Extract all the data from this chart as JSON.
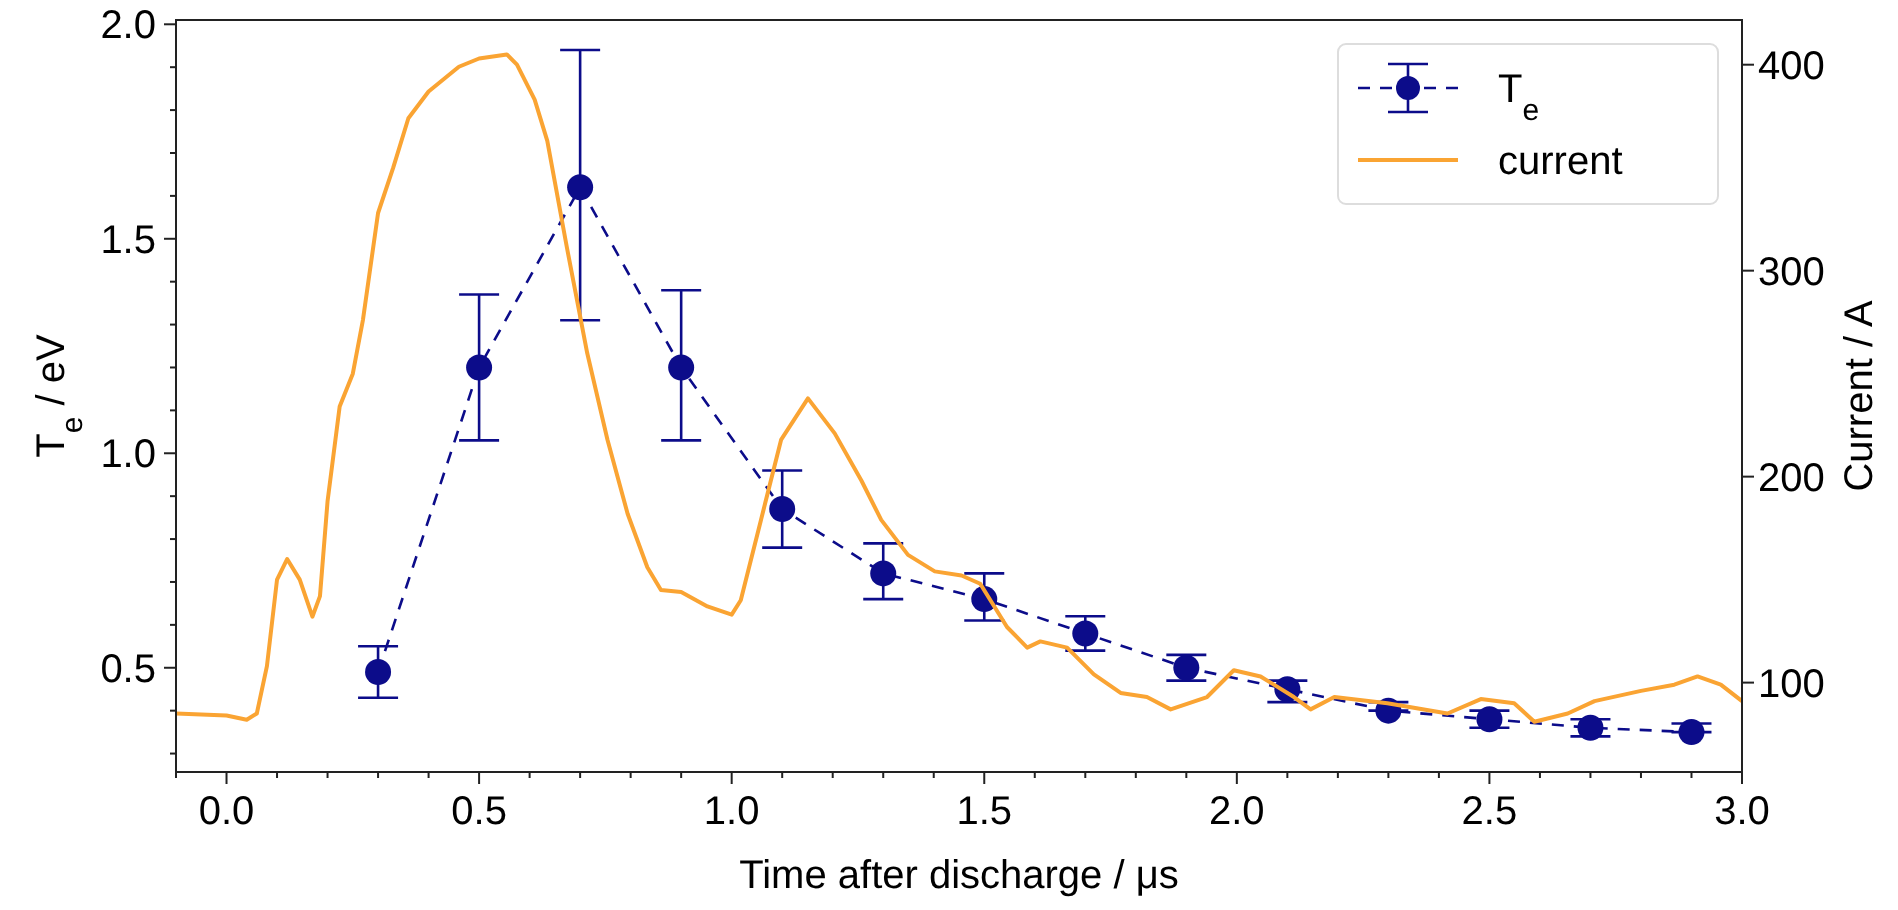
{
  "chart_data": {
    "type": "line",
    "xlabel": "Time after discharge / μs",
    "ylabel": "T$_{e}$ / eV",
    "y2label": "Current / A",
    "legend": "top right",
    "xlim": [
      -0.1,
      3.0
    ],
    "xticks": [
      {
        "value": -0.1,
        "label": null
      },
      {
        "value": 0,
        "label": "0.0"
      },
      {
        "value": 0.1,
        "label": null
      },
      {
        "value": 0.2,
        "label": null
      },
      {
        "value": 0.3,
        "label": null
      },
      {
        "value": 0.4,
        "label": null
      },
      {
        "value": 0.5,
        "label": "0.5"
      },
      {
        "value": 0.6,
        "label": null
      },
      {
        "value": 0.7,
        "label": null
      },
      {
        "value": 0.8,
        "label": null
      },
      {
        "value": 0.9,
        "label": null
      },
      {
        "value": 1,
        "label": "1.0"
      },
      {
        "value": 1.1,
        "label": null
      },
      {
        "value": 1.2,
        "label": null
      },
      {
        "value": 1.3,
        "label": null
      },
      {
        "value": 1.4,
        "label": null
      },
      {
        "value": 1.5,
        "label": "1.5"
      },
      {
        "value": 1.6,
        "label": null
      },
      {
        "value": 1.7,
        "label": null
      },
      {
        "value": 1.8,
        "label": null
      },
      {
        "value": 1.9,
        "label": null
      },
      {
        "value": 2,
        "label": "2.0"
      },
      {
        "value": 2.1,
        "label": null
      },
      {
        "value": 2.2,
        "label": null
      },
      {
        "value": 2.3,
        "label": null
      },
      {
        "value": 2.4,
        "label": null
      },
      {
        "value": 2.5,
        "label": "2.5"
      },
      {
        "value": 2.6,
        "label": null
      },
      {
        "value": 2.7,
        "label": null
      },
      {
        "value": 2.8,
        "label": null
      },
      {
        "value": 2.9,
        "label": null
      },
      {
        "value": 3,
        "label": "3.0"
      }
    ],
    "ylim": [
      0.257,
      2.01
    ],
    "yticks": [
      {
        "value": 0.3,
        "label": null
      },
      {
        "value": 0.4,
        "label": null
      },
      {
        "value": 0.5,
        "label": "0.5"
      },
      {
        "value": 0.6,
        "label": null
      },
      {
        "value": 0.7,
        "label": null
      },
      {
        "value": 0.8,
        "label": null
      },
      {
        "value": 0.9,
        "label": null
      },
      {
        "value": 1,
        "label": "1.0"
      },
      {
        "value": 1.1,
        "label": null
      },
      {
        "value": 1.2,
        "label": null
      },
      {
        "value": 1.3,
        "label": null
      },
      {
        "value": 1.4,
        "label": null
      },
      {
        "value": 1.5,
        "label": "1.5"
      },
      {
        "value": 1.6,
        "label": null
      },
      {
        "value": 1.7,
        "label": null
      },
      {
        "value": 1.8,
        "label": null
      },
      {
        "value": 1.9,
        "label": null
      },
      {
        "value": 2,
        "label": "2.0"
      }
    ],
    "y2lim": [
      56.6,
      421.7
    ],
    "y2ticks": [
      100,
      200,
      300,
      400
    ],
    "series": [
      {
        "name": "T$_{e}$",
        "color": "#0c0c8a",
        "line_style": "dashed",
        "marker": "circle",
        "x": [
          0.3,
          0.5,
          0.7,
          0.9,
          1.1,
          1.3,
          1.5,
          1.7,
          1.9,
          2.1,
          2.3,
          2.5,
          2.7,
          2.9
        ],
        "values": [
          0.49,
          1.2,
          1.62,
          1.2,
          0.87,
          0.72,
          0.66,
          0.58,
          0.5,
          0.45,
          0.4,
          0.38,
          0.36,
          0.35
        ],
        "errors": [
          [
            0.43,
            0.55
          ],
          [
            1.03,
            1.37
          ],
          [
            1.31,
            1.94
          ],
          [
            1.03,
            1.38
          ],
          [
            0.78,
            0.96
          ],
          [
            0.66,
            0.79
          ],
          [
            0.61,
            0.72
          ],
          [
            0.54,
            0.62
          ],
          [
            0.47,
            0.53
          ],
          [
            0.42,
            0.47
          ],
          [
            0.4,
            0.42
          ],
          [
            0.36,
            0.4
          ],
          [
            0.34,
            0.38
          ],
          [
            0.35,
            0.37
          ]
        ]
      },
      {
        "name": "current",
        "axis": "y2",
        "color": "#faa433",
        "line_style": "solid",
        "marker": "none",
        "x": [
          -0.1,
          0,
          0.04,
          0.06,
          0.08,
          0.1,
          0.12,
          0.145,
          0.17,
          0.185,
          0.2,
          0.224,
          0.25,
          0.27,
          0.3,
          0.33,
          0.36,
          0.4,
          0.42,
          0.46,
          0.5,
          0.555,
          0.575,
          0.61,
          0.635,
          0.674,
          0.714,
          0.754,
          0.794,
          0.833,
          0.86,
          0.9,
          0.952,
          1.0,
          1.018,
          1.058,
          1.098,
          1.151,
          1.204,
          1.257,
          1.296,
          1.349,
          1.402,
          1.455,
          1.492,
          1.545,
          1.585,
          1.611,
          1.664,
          1.717,
          1.77,
          1.822,
          1.869,
          1.941,
          1.994,
          2.047,
          2.113,
          2.146,
          2.193,
          2.298,
          2.417,
          2.483,
          2.549,
          2.589,
          2.655,
          2.708,
          2.8,
          2.866,
          2.912,
          2.958,
          3.0
        ],
        "values": [
          85,
          84,
          82,
          85,
          108,
          150,
          160,
          150,
          132,
          142,
          188,
          234,
          250,
          276,
          328,
          350,
          374,
          387,
          391,
          399,
          403,
          405,
          400,
          383,
          363,
          311,
          260,
          218,
          182,
          156,
          145,
          144,
          137,
          133,
          140,
          179,
          218,
          238,
          221,
          198,
          179,
          162,
          154,
          152,
          148,
          127,
          117,
          120,
          117,
          104,
          95,
          93,
          87,
          93,
          106,
          103,
          93,
          87,
          93,
          90,
          85,
          92,
          90,
          81,
          85,
          91,
          96,
          99,
          103,
          99,
          91
        ]
      }
    ]
  }
}
